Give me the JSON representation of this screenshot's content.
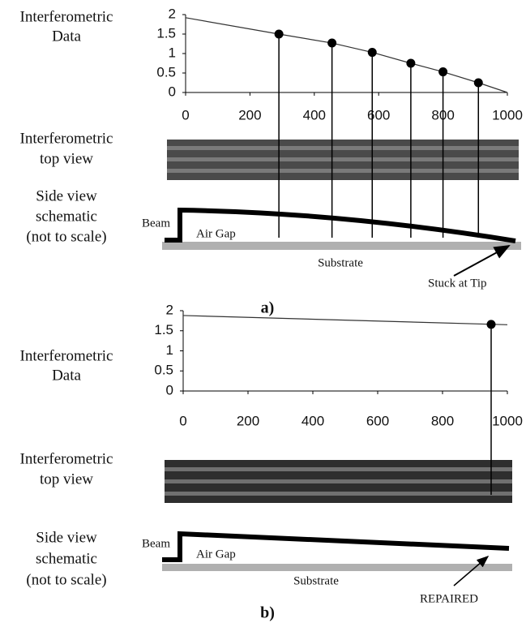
{
  "chart_data": [
    {
      "type": "line",
      "series": [
        {
          "x": [
            0,
            290,
            455,
            580,
            700,
            800,
            910,
            1000
          ],
          "values": [
            1.92,
            1.5,
            1.27,
            1.03,
            0.75,
            0.53,
            0.25,
            0
          ],
          "color": "#333333"
        },
        {
          "x": [
            290,
            455,
            580,
            700,
            800,
            910
          ],
          "values": [
            1.5,
            1.27,
            1.03,
            0.75,
            0.53,
            0.25
          ],
          "color": "#000000",
          "marker": true
        }
      ],
      "xlim": [
        0,
        1000
      ],
      "xticks": [
        0,
        200,
        400,
        600,
        800,
        1000
      ],
      "ylim": [
        0,
        2
      ],
      "yticks": [
        0,
        0.5,
        1,
        1.5,
        2
      ]
    },
    {
      "type": "line",
      "series": [
        {
          "x": [
            0,
            1000
          ],
          "values": [
            1.88,
            1.65
          ],
          "color": "#333333"
        },
        {
          "x": [
            950
          ],
          "values": [
            1.66
          ],
          "color": "#000000",
          "marker": true
        }
      ],
      "xlim": [
        0,
        1000
      ],
      "xticks": [
        0,
        200,
        400,
        600,
        800,
        1000
      ],
      "ylim": [
        0,
        2
      ],
      "yticks": [
        0,
        0.5,
        1,
        1.5,
        2
      ]
    }
  ],
  "panels": [
    {
      "row_labels": [
        [
          "Interferometric",
          "Data"
        ],
        [
          "Interferometric",
          "top view"
        ],
        [
          "Side view",
          "schematic",
          "(not to scale)"
        ]
      ],
      "schematic": {
        "beam": "Beam",
        "gap": "Air Gap",
        "substrate": "Substrate",
        "note": "Stuck at Tip"
      },
      "caption": "a)"
    },
    {
      "row_labels": [
        [
          "Interferometric",
          "Data"
        ],
        [
          "Interferometric",
          "top view"
        ],
        [
          "Side view",
          "schematic",
          "(not to scale)"
        ]
      ],
      "schematic": {
        "beam": "Beam",
        "gap": "Air Gap",
        "substrate": "Substrate",
        "note": "REPAIRED"
      },
      "caption": "b)"
    }
  ]
}
